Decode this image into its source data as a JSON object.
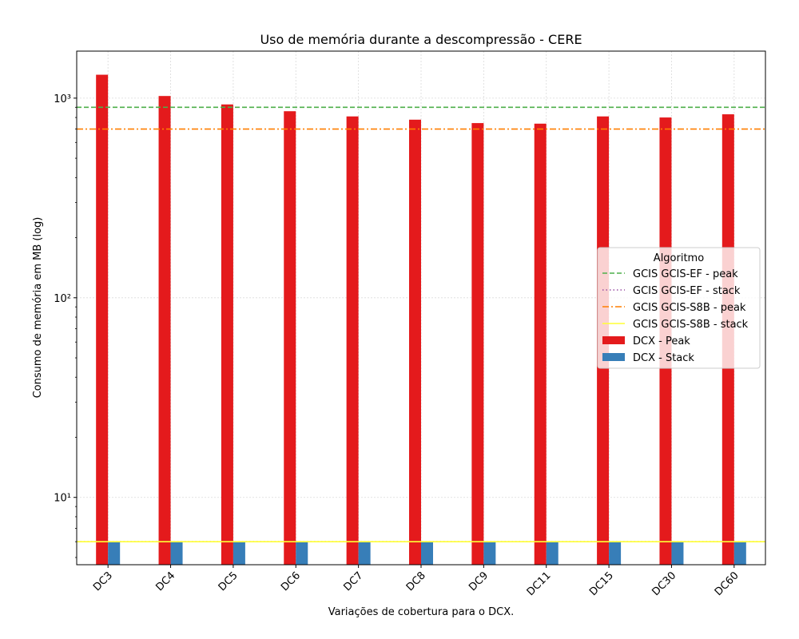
{
  "chart_data": {
    "type": "bar",
    "title": "Uso de memória durante a descompressão -  CERE",
    "xlabel": "Variações de cobertura para o DCX.",
    "ylabel": "Consumo de memória em MB (log)",
    "y_scale": "log",
    "ylim": [
      4.6,
      1720
    ],
    "y_tick_labels": [
      "10¹",
      "10²",
      "10³"
    ],
    "categories": [
      "DC3",
      "DC4",
      "DC5",
      "DC6",
      "DC7",
      "DC8",
      "DC9",
      "DC11",
      "DC15",
      "DC30",
      "DC60"
    ],
    "series": [
      {
        "name": "DCX - Peak",
        "color": "#e41a1c",
        "values": [
          1310,
          1025,
          930,
          860,
          810,
          780,
          750,
          745,
          810,
          800,
          830
        ]
      },
      {
        "name": "DCX - Stack",
        "color": "#377eb8",
        "values": [
          6,
          6,
          6,
          6,
          6,
          6,
          6,
          6,
          6,
          6,
          6
        ]
      }
    ],
    "reference_lines": [
      {
        "name": "GCIS GCIS-EF - peak",
        "value": 900,
        "color": "#4daf4a",
        "style": "dashed"
      },
      {
        "name": "GCIS GCIS-EF - stack",
        "value": 6,
        "color": "#984ea3",
        "style": "dotted"
      },
      {
        "name": "GCIS GCIS-S8B - peak",
        "value": 700,
        "color": "#ff7f00",
        "style": "dashdot"
      },
      {
        "name": "GCIS GCIS-S8B - stack",
        "value": 6,
        "color": "#ffff33",
        "style": "solid"
      }
    ],
    "legend": {
      "title": "Algoritmo",
      "placement": "center-right"
    },
    "grid": true
  }
}
